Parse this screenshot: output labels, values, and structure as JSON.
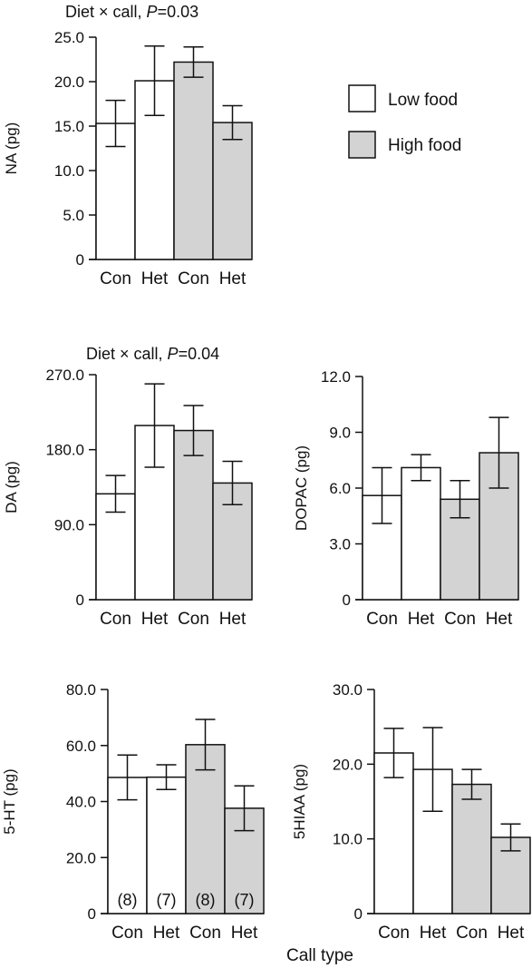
{
  "colors": {
    "low": "#ffffff",
    "high": "#d3d3d3",
    "ink": "#111111"
  },
  "legend": {
    "low_label": "Low food",
    "high_label": "High food"
  },
  "common_xlabel": "Call type",
  "chart_data": [
    {
      "id": "na",
      "type": "bar",
      "title_prefix": "Diet × call, ",
      "title_p": "P",
      "title_suffix": "=0.03",
      "ylabel": "NA (pg)",
      "ylim": [
        0,
        25
      ],
      "ticks": [
        0,
        5,
        10,
        15,
        20,
        25
      ],
      "tick_labels": [
        "0",
        "5.0",
        "10.0",
        "15.0",
        "20.0",
        "25.0"
      ],
      "categories": [
        "Con",
        "Het",
        "Con",
        "Het"
      ],
      "groups": [
        "Low food",
        "Low food",
        "High food",
        "High food"
      ],
      "values": [
        15.3,
        20.1,
        22.2,
        15.4
      ],
      "errors": [
        2.6,
        3.9,
        1.7,
        1.9
      ]
    },
    {
      "id": "da",
      "type": "bar",
      "title_prefix": "Diet × call, ",
      "title_p": "P",
      "title_suffix": "=0.04",
      "ylabel": "DA (pg)",
      "ylim": [
        0,
        270
      ],
      "ticks": [
        0,
        90,
        180,
        270
      ],
      "tick_labels": [
        "0",
        "90.0",
        "180.0",
        "270.0"
      ],
      "categories": [
        "Con",
        "Het",
        "Con",
        "Het"
      ],
      "groups": [
        "Low food",
        "Low food",
        "High food",
        "High food"
      ],
      "values": [
        127,
        209,
        203,
        140
      ],
      "errors": [
        22,
        50,
        30,
        26
      ]
    },
    {
      "id": "dopac",
      "type": "bar",
      "ylabel": "DOPAC (pg)",
      "ylim": [
        0,
        12
      ],
      "ticks": [
        0,
        3,
        6,
        9,
        12
      ],
      "tick_labels": [
        "0",
        "3.0",
        "6.0",
        "9.0",
        "12.0"
      ],
      "categories": [
        "Con",
        "Het",
        "Con",
        "Het"
      ],
      "groups": [
        "Low food",
        "Low food",
        "High food",
        "High food"
      ],
      "values": [
        5.6,
        7.1,
        5.4,
        7.9
      ],
      "errors": [
        1.5,
        0.7,
        1.0,
        1.9
      ]
    },
    {
      "id": "ht",
      "type": "bar",
      "ylabel": "5-HT (pg)",
      "ylim": [
        0,
        80
      ],
      "ticks": [
        0,
        20,
        40,
        60,
        80
      ],
      "tick_labels": [
        "0",
        "20.0",
        "40.0",
        "60.0",
        "80.0"
      ],
      "categories": [
        "Con",
        "Het",
        "Con",
        "Het"
      ],
      "groups": [
        "Low food",
        "Low food",
        "High food",
        "High food"
      ],
      "values": [
        48.6,
        48.7,
        60.3,
        37.6
      ],
      "errors": [
        8.0,
        4.4,
        9.0,
        8.0
      ],
      "n_labels": [
        "(8)",
        "(7)",
        "(8)",
        "(7)"
      ]
    },
    {
      "id": "hiaa",
      "type": "bar",
      "ylabel": "5HIAA (pg)",
      "ylim": [
        0,
        30
      ],
      "ticks": [
        0,
        10,
        20,
        30
      ],
      "tick_labels": [
        "0",
        "10.0",
        "20.0",
        "30.0"
      ],
      "categories": [
        "Con",
        "Het",
        "Con",
        "Het"
      ],
      "groups": [
        "Low food",
        "Low food",
        "High food",
        "High food"
      ],
      "values": [
        21.5,
        19.3,
        17.3,
        10.2
      ],
      "errors": [
        3.3,
        5.6,
        2.0,
        1.8
      ]
    }
  ]
}
